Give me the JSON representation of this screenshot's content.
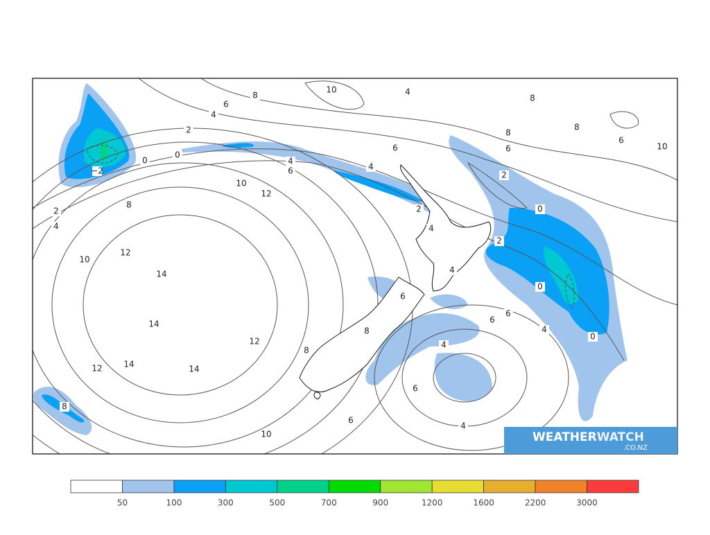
{
  "map": {
    "contour_labels": [
      "10",
      "8",
      "4",
      "8",
      "6",
      "4",
      "8",
      "8",
      "6",
      "10",
      "2",
      "6",
      "6",
      "0",
      "0",
      "−2",
      "4",
      "6",
      "4",
      "2",
      "10",
      "12",
      "8",
      "2",
      "2",
      "0",
      "4",
      "4",
      "2",
      "12",
      "10",
      "14",
      "4",
      "0",
      "6",
      "6",
      "6",
      "14",
      "4",
      "8",
      "0",
      "12",
      "8",
      "4",
      "14",
      "14",
      "12",
      "6",
      "8",
      "6",
      "4",
      "10"
    ]
  },
  "logo": {
    "brand": "WEATHER",
    "brand_accent": "WATCH",
    "domain": ".CO.NZ"
  },
  "legend": {
    "thresholds": [
      50,
      100,
      300,
      500,
      700,
      900,
      1200,
      1600,
      2200,
      3000
    ],
    "colors": [
      "#ffffff",
      "#a0c4ec",
      "#0aa0f6",
      "#00c8d2",
      "#00d28c",
      "#00dc00",
      "#a0e632",
      "#e6dc32",
      "#e6af2d",
      "#f08228",
      "#fa3c3c"
    ]
  }
}
